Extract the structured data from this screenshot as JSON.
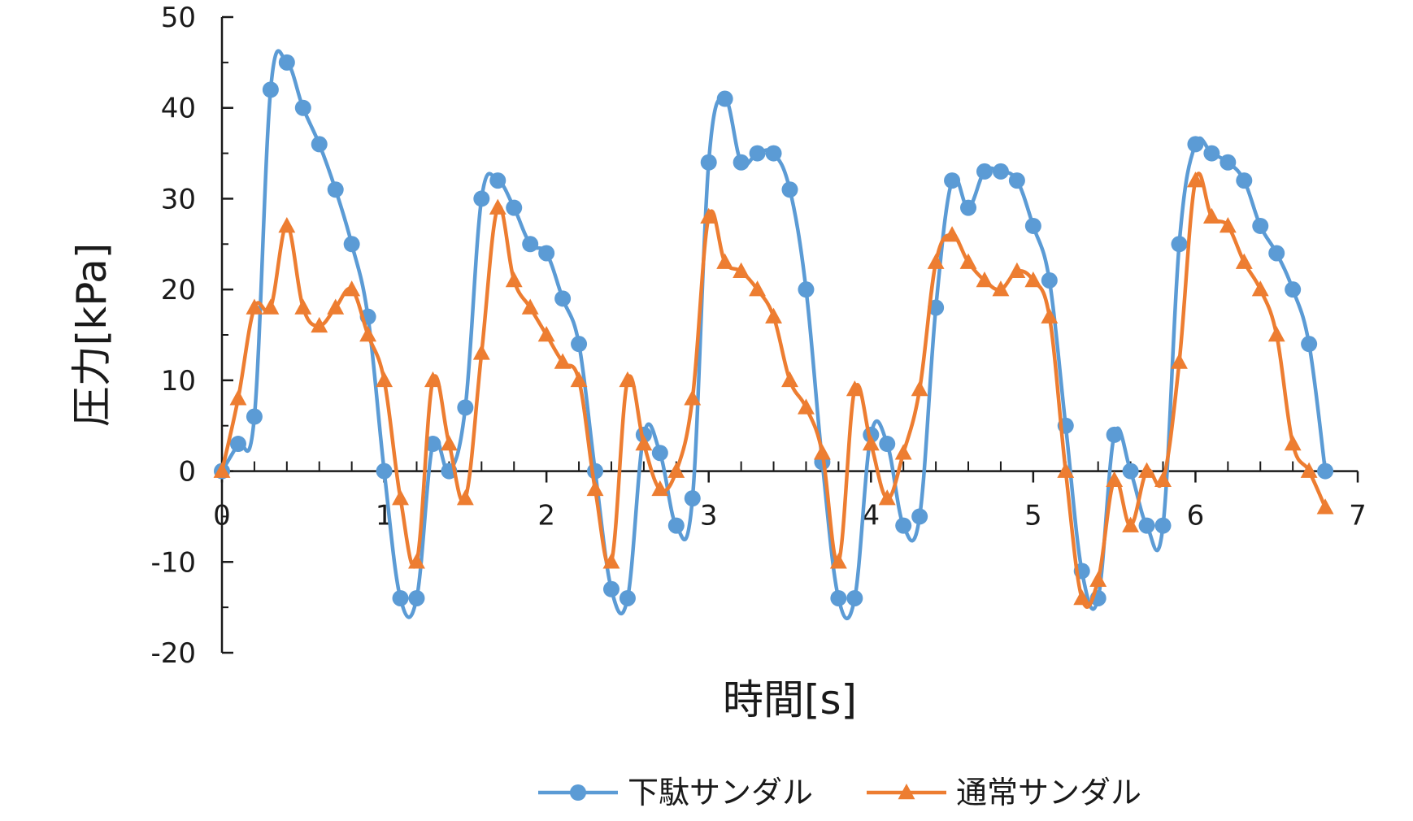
{
  "chart_data": {
    "type": "line",
    "xlabel": "時間[s]",
    "ylabel": "圧力[kPa]",
    "xlim": [
      0,
      7
    ],
    "ylim": [
      -20,
      50
    ],
    "x_ticks": [
      "0",
      "1",
      "2",
      "3",
      "4",
      "5",
      "6",
      "7"
    ],
    "y_ticks": [
      "-20",
      "-10",
      "0",
      "10",
      "20",
      "30",
      "40",
      "50"
    ],
    "grid": false,
    "legend": "bottom",
    "series": [
      {
        "name": "下駄サンダル",
        "color": "#5B9BD5",
        "marker": "circle",
        "x": [
          0,
          0.1,
          0.2,
          0.3,
          0.4,
          0.5,
          0.6,
          0.7,
          0.8,
          0.9,
          1.0,
          1.1,
          1.2,
          1.3,
          1.4,
          1.5,
          1.6,
          1.7,
          1.8,
          1.9,
          2.0,
          2.1,
          2.2,
          2.3,
          2.4,
          2.5,
          2.6,
          2.7,
          2.8,
          2.9,
          3.0,
          3.1,
          3.2,
          3.3,
          3.4,
          3.5,
          3.6,
          3.7,
          3.8,
          3.9,
          4.0,
          4.1,
          4.2,
          4.3,
          4.4,
          4.5,
          4.6,
          4.7,
          4.8,
          4.9,
          5.0,
          5.1,
          5.2,
          5.3,
          5.4,
          5.5,
          5.6,
          5.7,
          5.8,
          5.9,
          6.0,
          6.1,
          6.2,
          6.3,
          6.4,
          6.5,
          6.6,
          6.7,
          6.8
        ],
        "y": [
          0,
          3,
          6,
          42,
          45,
          40,
          36,
          31,
          25,
          17,
          0,
          -14,
          -14,
          3,
          0,
          7,
          30,
          32,
          29,
          25,
          24,
          19,
          14,
          0,
          -13,
          -14,
          4,
          2,
          -6,
          -3,
          34,
          41,
          34,
          35,
          35,
          31,
          20,
          1,
          -14,
          -14,
          4,
          3,
          -6,
          -5,
          18,
          32,
          29,
          33,
          33,
          32,
          27,
          21,
          5,
          -11,
          -14,
          4,
          0,
          -6,
          -6,
          25,
          36,
          35,
          34,
          32,
          27,
          24,
          20,
          14,
          0
        ]
      },
      {
        "name": "通常サンダル",
        "color": "#ED7D31",
        "marker": "triangle",
        "x": [
          0,
          0.1,
          0.2,
          0.3,
          0.4,
          0.5,
          0.6,
          0.7,
          0.8,
          0.9,
          1.0,
          1.1,
          1.2,
          1.3,
          1.4,
          1.5,
          1.6,
          1.7,
          1.8,
          1.9,
          2.0,
          2.1,
          2.2,
          2.3,
          2.4,
          2.5,
          2.6,
          2.7,
          2.8,
          2.9,
          3.0,
          3.1,
          3.2,
          3.3,
          3.4,
          3.5,
          3.6,
          3.7,
          3.8,
          3.9,
          4.0,
          4.1,
          4.2,
          4.3,
          4.4,
          4.5,
          4.6,
          4.7,
          4.8,
          4.9,
          5.0,
          5.1,
          5.2,
          5.3,
          5.4,
          5.5,
          5.6,
          5.7,
          5.8,
          5.9,
          6.0,
          6.1,
          6.2,
          6.3,
          6.4,
          6.5,
          6.6,
          6.7,
          6.8
        ],
        "y": [
          0,
          8,
          18,
          18,
          27,
          18,
          16,
          18,
          20,
          15,
          10,
          -3,
          -10,
          10,
          3,
          -3,
          13,
          29,
          21,
          18,
          15,
          12,
          10,
          -2,
          -10,
          10,
          3,
          -2,
          0,
          8,
          28,
          23,
          22,
          20,
          17,
          10,
          7,
          2,
          -10,
          9,
          3,
          -3,
          2,
          9,
          23,
          26,
          23,
          21,
          20,
          22,
          21,
          17,
          0,
          -14,
          -12,
          -1,
          -6,
          0,
          -1,
          12,
          32,
          28,
          27,
          23,
          20,
          15,
          3,
          0,
          -4
        ]
      }
    ]
  }
}
